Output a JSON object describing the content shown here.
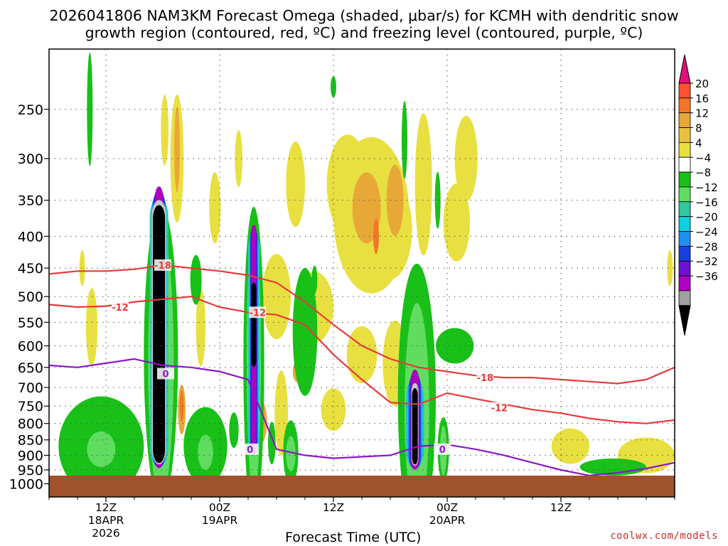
{
  "title": {
    "line1": "2026041806 NAM3KM Forecast Omega (shaded, μbar/s) for KCMH with dendritic snow",
    "line2": "growth region (contoured, red, ºC) and freezing level (contoured, purple, ºC)"
  },
  "credit": "coolwx.com/models",
  "chart_data": {
    "type": "heatmap",
    "title": "2026041806 NAM3KM Forecast Omega (shaded, μbar/s) for KCMH with dendritic snow growth region (contoured, red, ºC) and freezing level (contoured, purple, ºC)",
    "xlabel": "Forecast Time (UTC)",
    "ylabel": "",
    "x_range_hours_from_init": [
      0,
      66
    ],
    "y_axis": {
      "scale": "log",
      "range_hPa": [
        1050,
        200
      ],
      "ticks": [
        250,
        300,
        350,
        400,
        450,
        500,
        550,
        600,
        650,
        700,
        750,
        800,
        850,
        900,
        950,
        1000
      ]
    },
    "x_ticks": [
      {
        "hour": 6,
        "line1": "12Z",
        "line2": "18APR",
        "line3": "2026"
      },
      {
        "hour": 18,
        "line1": "00Z",
        "line2": "19APR",
        "line3": ""
      },
      {
        "hour": 30,
        "line1": "12Z",
        "line2": "",
        "line3": ""
      },
      {
        "hour": 42,
        "line1": "00Z",
        "line2": "20APR",
        "line3": ""
      },
      {
        "hour": 54,
        "line1": "12Z",
        "line2": "",
        "line3": ""
      }
    ],
    "grid": true,
    "colorbar": {
      "labels": [
        "20",
        "16",
        "12",
        "8",
        "4",
        "−4",
        "−8",
        "−12",
        "−16",
        "−20",
        "−24",
        "−28",
        "−32",
        "−36"
      ],
      "colors": [
        "#ff5030",
        "#f07828",
        "#e8a838",
        "#e8c040",
        "#e8e040",
        "#ffffff",
        "#18c018",
        "#60dd60",
        "#30c8a0",
        "#10d0e0",
        "#2090f0",
        "#1840e0",
        "#7010d0",
        "#b000c0",
        "#a0a0a0"
      ],
      "top_arrow_color": "#e0107a",
      "bottom_arrow_color": "#000000"
    },
    "omega_cores": [
      {
        "hour": 11.6,
        "top_hPa": 330,
        "bottom_hPa": 945,
        "min_value": -36
      },
      {
        "hour": 21.6,
        "top_hPa": 380,
        "bottom_hPa": 900,
        "min_value": -32
      },
      {
        "hour": 38.6,
        "top_hPa": 650,
        "bottom_hPa": 950,
        "min_value": -36
      }
    ],
    "series": [
      {
        "name": "-18",
        "color": "#e83a3a",
        "type": "contour",
        "x": [
          0,
          3,
          6,
          9,
          12,
          15,
          18,
          21,
          24,
          27,
          30,
          33,
          36,
          39,
          42,
          45,
          48,
          51,
          54,
          57,
          60,
          63,
          66
        ],
        "y": [
          460,
          455,
          455,
          452,
          445,
          450,
          455,
          462,
          475,
          510,
          555,
          600,
          630,
          650,
          660,
          670,
          675,
          675,
          680,
          685,
          690,
          680,
          650
        ]
      },
      {
        "name": "-12",
        "color": "#e83a3a",
        "type": "contour",
        "x": [
          0,
          3,
          6,
          9,
          12,
          15,
          18,
          21,
          24,
          27,
          30,
          33,
          36,
          39,
          42,
          45,
          48,
          51,
          54,
          57,
          60,
          63,
          66
        ],
        "y": [
          515,
          520,
          518,
          510,
          505,
          500,
          520,
          530,
          535,
          555,
          620,
          680,
          740,
          745,
          715,
          730,
          745,
          760,
          770,
          785,
          795,
          800,
          790
        ]
      },
      {
        "name": "0",
        "color": "#8a18c8",
        "type": "contour",
        "x": [
          0,
          3,
          6,
          9,
          12,
          15,
          18,
          21,
          24,
          27,
          30,
          33,
          36,
          39,
          42,
          45,
          48,
          51,
          54,
          57,
          60,
          63,
          66
        ],
        "y": [
          645,
          650,
          640,
          630,
          645,
          650,
          660,
          680,
          880,
          900,
          910,
          905,
          900,
          870,
          865,
          880,
          900,
          925,
          950,
          970,
          960,
          945,
          925
        ]
      }
    ],
    "contour_labels": [
      {
        "text": "-18",
        "hour": 12,
        "hPa": 445,
        "color": "#e83a3a"
      },
      {
        "text": "-12",
        "hour": 7.5,
        "hPa": 520,
        "color": "#e83a3a"
      },
      {
        "text": "-12",
        "hour": 22,
        "hPa": 530,
        "color": "#e83a3a"
      },
      {
        "text": "-18",
        "hour": 46,
        "hPa": 675,
        "color": "#e83a3a"
      },
      {
        "text": "-12",
        "hour": 47.5,
        "hPa": 755,
        "color": "#e83a3a"
      },
      {
        "text": "0",
        "hour": 12.3,
        "hPa": 665,
        "color": "#8a18c8"
      },
      {
        "text": "0",
        "hour": 21.2,
        "hPa": 880,
        "color": "#8a18c8"
      },
      {
        "text": "0",
        "hour": 41.5,
        "hPa": 880,
        "color": "#8a18c8"
      }
    ],
    "terrain_color": "#a0522d"
  }
}
